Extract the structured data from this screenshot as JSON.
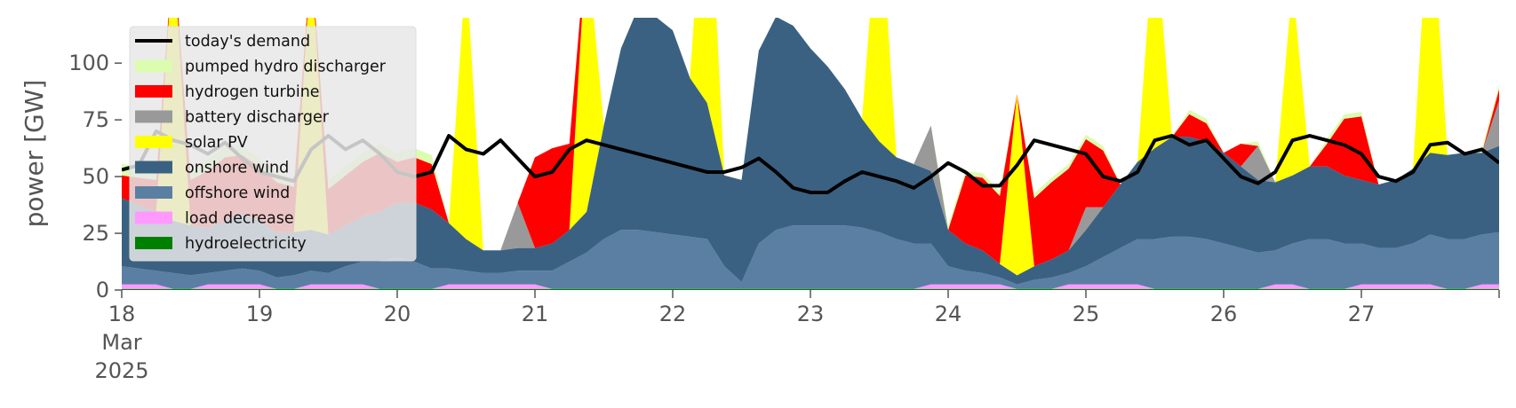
{
  "chart_data": {
    "type": "area",
    "ylabel": "power [GW]",
    "ylim": [
      0,
      120
    ],
    "xlim": [
      "2025-03-18T00:00",
      "2025-03-28T00:00"
    ],
    "grid": false,
    "legend_placement": "top-left",
    "yticks": [
      0,
      25,
      50,
      75,
      100
    ],
    "xticks": [
      {
        "date": "2025-03-18",
        "label": "18",
        "sub1": "Mar",
        "sub2": "2025"
      },
      {
        "date": "2025-03-19",
        "label": "19"
      },
      {
        "date": "2025-03-20",
        "label": "20"
      },
      {
        "date": "2025-03-21",
        "label": "21"
      },
      {
        "date": "2025-03-22",
        "label": "22"
      },
      {
        "date": "2025-03-23",
        "label": "23"
      },
      {
        "date": "2025-03-24",
        "label": "24"
      },
      {
        "date": "2025-03-25",
        "label": "25"
      },
      {
        "date": "2025-03-26",
        "label": "26"
      },
      {
        "date": "2025-03-27",
        "label": "27"
      }
    ],
    "x": [
      "2025-03-18T00:00",
      "2025-03-18T03:00",
      "2025-03-18T06:00",
      "2025-03-18T09:00",
      "2025-03-18T12:00",
      "2025-03-18T15:00",
      "2025-03-18T18:00",
      "2025-03-18T21:00",
      "2025-03-19T00:00",
      "2025-03-19T03:00",
      "2025-03-19T06:00",
      "2025-03-19T09:00",
      "2025-03-19T12:00",
      "2025-03-19T15:00",
      "2025-03-19T18:00",
      "2025-03-19T21:00",
      "2025-03-20T00:00",
      "2025-03-20T03:00",
      "2025-03-20T06:00",
      "2025-03-20T09:00",
      "2025-03-20T12:00",
      "2025-03-20T15:00",
      "2025-03-20T18:00",
      "2025-03-20T21:00",
      "2025-03-21T00:00",
      "2025-03-21T03:00",
      "2025-03-21T06:00",
      "2025-03-21T09:00",
      "2025-03-21T12:00",
      "2025-03-21T15:00",
      "2025-03-21T18:00",
      "2025-03-21T21:00",
      "2025-03-22T00:00",
      "2025-03-22T03:00",
      "2025-03-22T06:00",
      "2025-03-22T09:00",
      "2025-03-22T12:00",
      "2025-03-22T15:00",
      "2025-03-22T18:00",
      "2025-03-22T21:00",
      "2025-03-23T00:00",
      "2025-03-23T03:00",
      "2025-03-23T06:00",
      "2025-03-23T09:00",
      "2025-03-23T12:00",
      "2025-03-23T15:00",
      "2025-03-23T18:00",
      "2025-03-23T21:00",
      "2025-03-24T00:00",
      "2025-03-24T03:00",
      "2025-03-24T06:00",
      "2025-03-24T09:00",
      "2025-03-24T12:00",
      "2025-03-24T15:00",
      "2025-03-24T18:00",
      "2025-03-24T21:00",
      "2025-03-25T00:00",
      "2025-03-25T03:00",
      "2025-03-25T06:00",
      "2025-03-25T09:00",
      "2025-03-25T12:00",
      "2025-03-25T15:00",
      "2025-03-25T18:00",
      "2025-03-25T21:00",
      "2025-03-26T00:00",
      "2025-03-26T03:00",
      "2025-03-26T06:00",
      "2025-03-26T09:00",
      "2025-03-26T12:00",
      "2025-03-26T15:00",
      "2025-03-26T18:00",
      "2025-03-26T21:00",
      "2025-03-27T00:00",
      "2025-03-27T03:00",
      "2025-03-27T06:00",
      "2025-03-27T09:00",
      "2025-03-27T12:00",
      "2025-03-27T15:00",
      "2025-03-27T18:00",
      "2025-03-27T21:00",
      "2025-03-28T00:00"
    ],
    "series": [
      {
        "name": "hydroelectricity",
        "color": "#008000",
        "values": [
          0.5,
          0.5,
          0.5,
          0.5,
          0.5,
          0.5,
          0.5,
          0.5,
          0.5,
          0.5,
          0.5,
          0.5,
          0.5,
          0.5,
          0.5,
          0.5,
          0.5,
          0.5,
          0.5,
          0.5,
          0.5,
          0.5,
          0.5,
          0.5,
          0.5,
          0.5,
          0.5,
          0.5,
          0.5,
          0.5,
          0.5,
          0.5,
          0.5,
          0.5,
          0.5,
          0.5,
          0.5,
          0.5,
          0.5,
          0.5,
          0.5,
          0.5,
          0.5,
          0.5,
          0.5,
          0.5,
          0.5,
          0.5,
          0.5,
          0.5,
          0.5,
          0.5,
          0.5,
          0.5,
          0.5,
          0.5,
          0.5,
          0.5,
          0.5,
          0.5,
          0.5,
          0.5,
          0.5,
          0.5,
          0.5,
          0.5,
          0.5,
          0.5,
          0.5,
          0.5,
          0.5,
          0.5,
          0.5,
          0.5,
          0.5,
          0.5,
          0.5,
          0.5,
          0.5,
          0.5,
          0.5
        ]
      },
      {
        "name": "load decrease",
        "color": "#ff99ff",
        "values": [
          2,
          2,
          2,
          0,
          0,
          2,
          2,
          2,
          2,
          0,
          0,
          2,
          2,
          2,
          2,
          0,
          0,
          0,
          0,
          2,
          2,
          2,
          2,
          2,
          2,
          0,
          0,
          0,
          0,
          0,
          0,
          0,
          0,
          0,
          0,
          0,
          0,
          0,
          0,
          0,
          0,
          0,
          0,
          0,
          0,
          0,
          0,
          2,
          2,
          2,
          2,
          2,
          0,
          0,
          0,
          2,
          2,
          2,
          2,
          2,
          0,
          0,
          0,
          0,
          0,
          0,
          0,
          2,
          2,
          0,
          0,
          0,
          2,
          2,
          2,
          2,
          2,
          0,
          0,
          2,
          2
        ]
      },
      {
        "name": "offshore wind",
        "color": "#5a7fa3",
        "values": [
          8,
          7,
          6,
          7,
          6,
          5,
          6,
          7,
          6,
          5,
          6,
          6,
          5,
          8,
          10,
          12,
          14,
          12,
          9,
          7,
          6,
          5,
          5,
          6,
          6,
          8,
          12,
          16,
          22,
          26,
          26,
          25,
          24,
          23,
          22,
          10,
          3,
          20,
          26,
          28,
          28,
          28,
          28,
          27,
          25,
          22,
          20,
          18,
          8,
          6,
          5,
          3,
          2,
          4,
          5,
          5,
          8,
          12,
          16,
          20,
          22,
          23,
          23,
          22,
          20,
          18,
          16,
          15,
          18,
          22,
          22,
          20,
          18,
          16,
          16,
          18,
          22,
          22,
          22,
          22,
          23
        ]
      },
      {
        "name": "onshore wind",
        "color": "#3b6182",
        "values": [
          30,
          28,
          26,
          23,
          22,
          20,
          22,
          24,
          22,
          20,
          19,
          18,
          17,
          18,
          20,
          22,
          24,
          26,
          26,
          20,
          14,
          10,
          10,
          10,
          10,
          12,
          14,
          18,
          50,
          80,
          98,
          95,
          90,
          70,
          60,
          40,
          45,
          85,
          94,
          88,
          78,
          70,
          60,
          48,
          40,
          36,
          35,
          32,
          16,
          12,
          10,
          6,
          4,
          6,
          8,
          10,
          16,
          22,
          28,
          34,
          40,
          44,
          44,
          43,
          40,
          36,
          32,
          30,
          30,
          32,
          32,
          30,
          28,
          28,
          30,
          33,
          36,
          37,
          38,
          36,
          38
        ]
      },
      {
        "name": "solar PV",
        "color": "#ffff00",
        "values": [
          0,
          0,
          0,
          120,
          0,
          0,
          0,
          0,
          0,
          0,
          0,
          120,
          0,
          0,
          0,
          0,
          0,
          0,
          0,
          0,
          120,
          0,
          0,
          0,
          0,
          0,
          0,
          120,
          0,
          0,
          0,
          0,
          0,
          0,
          120,
          0,
          0,
          0,
          0,
          0,
          0,
          0,
          0,
          0,
          110,
          0,
          0,
          0,
          0,
          0,
          0,
          0,
          80,
          0,
          0,
          0,
          0,
          0,
          0,
          0,
          100,
          0,
          0,
          0,
          0,
          0,
          0,
          0,
          85,
          0,
          0,
          0,
          0,
          0,
          0,
          0,
          120,
          0,
          0,
          0,
          0
        ]
      },
      {
        "name": "battery discharger",
        "color": "#999999",
        "values": [
          0,
          0,
          0,
          0,
          0,
          0,
          0,
          0,
          0,
          0,
          0,
          0,
          0,
          0,
          0,
          0,
          0,
          0,
          0,
          0,
          0,
          0,
          0,
          20,
          0,
          0,
          0,
          0,
          0,
          0,
          0,
          0,
          0,
          0,
          0,
          0,
          0,
          0,
          0,
          0,
          0,
          0,
          0,
          0,
          0,
          0,
          0,
          20,
          0,
          0,
          0,
          0,
          0,
          0,
          0,
          0,
          10,
          0,
          0,
          0,
          0,
          0,
          0,
          0,
          0,
          0,
          15,
          0,
          0,
          0,
          0,
          0,
          0,
          0,
          0,
          0,
          0,
          0,
          0,
          0,
          20
        ]
      },
      {
        "name": "hydrogen turbine",
        "color": "#ff0000",
        "values": [
          10,
          12,
          14,
          0,
          20,
          25,
          28,
          26,
          24,
          22,
          20,
          0,
          20,
          22,
          24,
          26,
          18,
          20,
          20,
          0,
          0,
          0,
          0,
          0,
          40,
          42,
          38,
          0,
          0,
          0,
          0,
          0,
          0,
          0,
          0,
          0,
          0,
          0,
          0,
          0,
          0,
          0,
          0,
          0,
          0,
          0,
          0,
          0,
          0,
          30,
          32,
          30,
          0,
          30,
          34,
          36,
          30,
          25,
          0,
          0,
          0,
          0,
          10,
          8,
          0,
          10,
          0,
          0,
          0,
          0,
          10,
          25,
          28,
          0,
          0,
          0,
          0,
          0,
          0,
          0,
          5
        ]
      },
      {
        "name": "pumped hydro discharger",
        "color": "#dcfcb0",
        "values": [
          5,
          5,
          4,
          0,
          4,
          5,
          5,
          4,
          4,
          4,
          4,
          0,
          4,
          4,
          4,
          4,
          4,
          4,
          4,
          0,
          0,
          0,
          0,
          0,
          0,
          0,
          0,
          0,
          0,
          0,
          0,
          0,
          0,
          0,
          5,
          0,
          0,
          0,
          0,
          0,
          0,
          0,
          0,
          0,
          0,
          0,
          0,
          0,
          2,
          2,
          2,
          2,
          0,
          2,
          2,
          2,
          2,
          2,
          0,
          0,
          0,
          0,
          2,
          2,
          0,
          0,
          2,
          0,
          0,
          0,
          2,
          2,
          2,
          0,
          0,
          0,
          0,
          0,
          0,
          2,
          2
        ]
      }
    ],
    "demand": {
      "name": "today's demand",
      "color": "#000000",
      "values": [
        53,
        55,
        70,
        66,
        64,
        60,
        65,
        58,
        52,
        50,
        48,
        62,
        68,
        62,
        66,
        60,
        52,
        50,
        52,
        68,
        62,
        60,
        66,
        58,
        50,
        52,
        62,
        66,
        64,
        62,
        60,
        58,
        56,
        54,
        52,
        52,
        54,
        58,
        52,
        45,
        43,
        43,
        48,
        52,
        50,
        48,
        45,
        50,
        56,
        52,
        46,
        46,
        55,
        66,
        64,
        62,
        60,
        50,
        48,
        52,
        66,
        68,
        64,
        66,
        58,
        50,
        47,
        52,
        66,
        68,
        66,
        64,
        60,
        50,
        48,
        52,
        64,
        65,
        60,
        62,
        56
      ]
    },
    "legend_order": [
      "today's demand",
      "pumped hydro discharger",
      "hydrogen turbine",
      "battery discharger",
      "solar PV",
      "onshore wind",
      "offshore wind",
      "load decrease",
      "hydroelectricity"
    ]
  }
}
